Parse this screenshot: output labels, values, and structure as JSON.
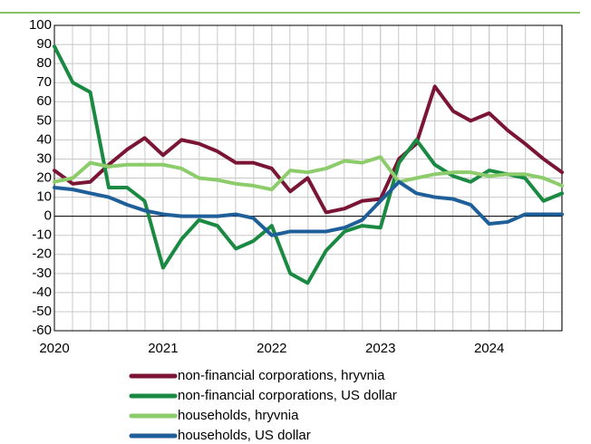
{
  "chart_data": {
    "type": "line",
    "x": [
      2020.0,
      2020.17,
      2020.33,
      2020.5,
      2020.67,
      2020.83,
      2021.0,
      2021.17,
      2021.33,
      2021.5,
      2021.67,
      2021.83,
      2022.0,
      2022.17,
      2022.33,
      2022.5,
      2022.67,
      2022.83,
      2023.0,
      2023.17,
      2023.33,
      2023.5,
      2023.67,
      2023.83,
      2024.0,
      2024.17,
      2024.33,
      2024.5,
      2024.67
    ],
    "series": [
      {
        "name": "non-financial corporations, hryvnia",
        "color": "#7b1535",
        "values": [
          24,
          17,
          18,
          27,
          35,
          41,
          32,
          40,
          38,
          34,
          28,
          28,
          25,
          13,
          20,
          2,
          4,
          8,
          9,
          30,
          38,
          68,
          55,
          50,
          54,
          45,
          38,
          30,
          23
        ]
      },
      {
        "name": "non-financial corporations, US dollar",
        "color": "#1a8a43",
        "values": [
          89,
          70,
          65,
          15,
          15,
          8,
          -27,
          -12,
          -2,
          -5,
          -17,
          -13,
          -5,
          -30,
          -35,
          -18,
          -8,
          -5,
          -6,
          28,
          40,
          27,
          21,
          18,
          24,
          22,
          20,
          8,
          12
        ]
      },
      {
        "name": "households, hryvnia",
        "color": "#8ccc6a",
        "values": [
          18,
          20,
          28,
          26,
          27,
          27,
          27,
          25,
          20,
          19,
          17,
          16,
          14,
          24,
          23,
          25,
          29,
          28,
          31,
          18,
          20,
          22,
          23,
          23,
          21,
          22,
          22,
          20,
          16
        ]
      },
      {
        "name": "households, US dollar",
        "color": "#1f5f99",
        "values": [
          15,
          14,
          12,
          10,
          6,
          3,
          1,
          0,
          0,
          0,
          1,
          -1,
          -10,
          -8,
          -8,
          -8,
          -6,
          -2,
          8,
          18,
          12,
          10,
          9,
          6,
          -4,
          -3,
          1,
          1,
          1
        ]
      }
    ],
    "xlim": [
      2020,
      2024.67
    ],
    "xticks": [
      2020,
      2021,
      2022,
      2023,
      2024
    ],
    "ylim": [
      -60,
      100
    ],
    "yticks": [
      -60,
      -50,
      -40,
      -30,
      -20,
      -10,
      0,
      10,
      20,
      30,
      40,
      50,
      60,
      70,
      80,
      90,
      100
    ],
    "grid": true
  }
}
